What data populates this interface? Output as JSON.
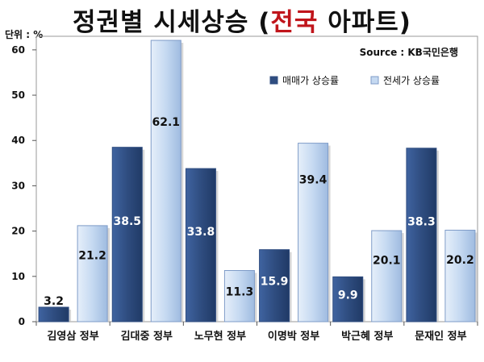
{
  "header": {
    "title_prefix": "정권별 시세상승 (",
    "title_highlight": "전국",
    "title_suffix": " 아파트)",
    "unit": "단위 : %",
    "source": "Source : KB국민은행"
  },
  "colors": {
    "sale": "#2f4d80",
    "jeonse": "#c5d9f1",
    "highlight": "#c0151b"
  },
  "chart_data": {
    "type": "bar",
    "categories": [
      "김영삼 정부",
      "김대중 정부",
      "노무현 정부",
      "이명박 정부",
      "박근혜 정부",
      "문재인 정부"
    ],
    "series": [
      {
        "name": "매매가 상승률",
        "values": [
          3.2,
          38.5,
          33.8,
          15.9,
          9.9,
          38.3
        ]
      },
      {
        "name": "전세가 상승률",
        "values": [
          21.2,
          62.1,
          11.3,
          39.4,
          20.1,
          20.2
        ]
      }
    ],
    "data_labels": [
      [
        "3.2",
        "38.5",
        "33.8",
        "15.9",
        "9.9",
        "38.3"
      ],
      [
        "21.2",
        "62.1",
        "11.3",
        "39.4",
        "20.1",
        "20.2"
      ]
    ],
    "y_ticks": [
      "0",
      "10",
      "20",
      "30",
      "40",
      "50",
      "60"
    ],
    "ylim": [
      0,
      63
    ],
    "grid": false,
    "legend_position": "top-right"
  }
}
